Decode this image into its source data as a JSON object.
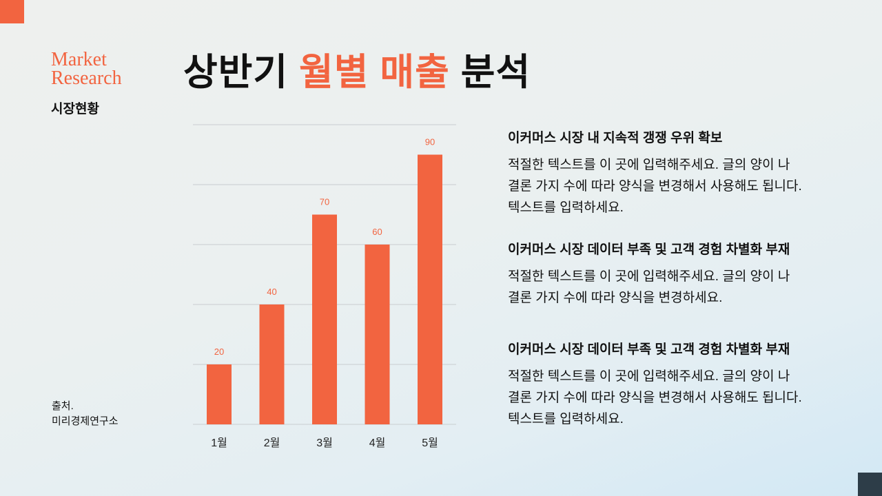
{
  "brand": {
    "line1": "Market",
    "line2": "Research",
    "subtitle": "시장현황"
  },
  "title": {
    "part1": "상반기 ",
    "accent": "월별 매출",
    "part2": " 분석"
  },
  "source": {
    "label": "출처.",
    "name": "미리경제연구소"
  },
  "colors": {
    "accent": "#f26440",
    "dark": "#2d3d48"
  },
  "chart_data": {
    "type": "bar",
    "categories": [
      "1월",
      "2월",
      "3월",
      "4월",
      "5월"
    ],
    "values": [
      20,
      40,
      70,
      60,
      90
    ],
    "ylim": [
      0,
      100
    ],
    "yticks": [
      0,
      20,
      40,
      60,
      80,
      100
    ],
    "grid": true,
    "data_labels": true,
    "title": "",
    "xlabel": "",
    "ylabel": ""
  },
  "sections": [
    {
      "heading": "이커머스 시장 내 지속적 갱쟁 우위 확보",
      "body": "적절한 텍스트를 이 곳에 입력해주세요. 글의 양이 나 결론 가지 수에 따라 양식을 변경해서 사용해도 됩니다. 텍스트를 입력하세요."
    },
    {
      "heading": "이커머스 시장 데이터 부족 및 고객 경험 차별화 부재",
      "body": "적절한 텍스트를 이 곳에 입력해주세요. 글의 양이 나 결론 가지 수에 따라 양식을 변경하세요."
    },
    {
      "heading": "이커머스 시장 데이터 부족 및 고객 경험 차별화 부재",
      "body": "적절한 텍스트를 이 곳에 입력해주세요. 글의 양이 나 결론 가지 수에 따라 양식을 변경해서 사용해도 됩니다. 텍스트를 입력하세요."
    }
  ]
}
